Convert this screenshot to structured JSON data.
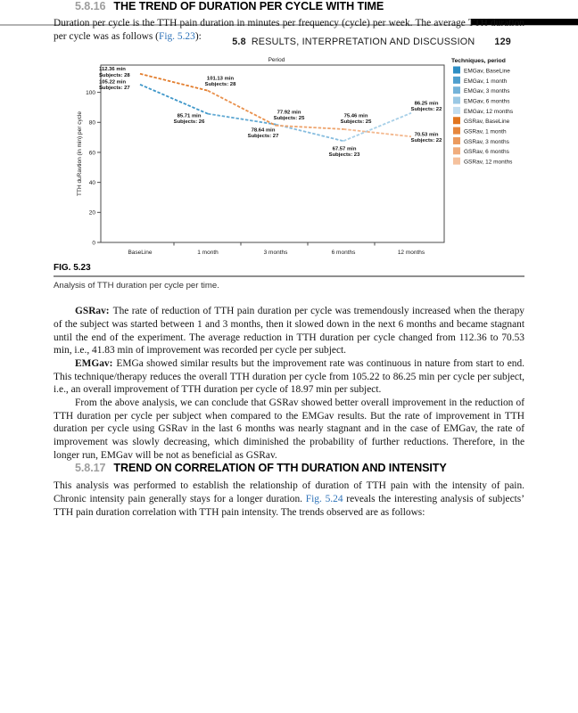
{
  "header": {
    "chapter_section": "5.8",
    "title": "RESULTS, INTERPRETATION AND DISCUSSION",
    "page_number": "129"
  },
  "section_trend_duration": {
    "number": "5.8.16",
    "heading": "THE TREND OF DURATION PER CYCLE WITH TIME",
    "intro_before": "Duration per cycle is the TTH pain duration in minutes per frequency (cycle) per week. The average TTH duration per cycle was as follows (",
    "intro_link": "Fig. 5.23",
    "intro_after": "):",
    "paragraphs": [
      {
        "lead": "GSRav:",
        "text": "The rate of reduction of TTH pain duration per cycle was tremendously increased when the therapy of the subject was started between 1 and 3 months, then it slowed down in the next 6 months and became stagnant until the end of the experiment. The average reduction in TTH duration per cycle changed from 112.36 to 70.53 min, i.e., 41.83 min of improvement was recorded per cycle per subject."
      },
      {
        "lead": "EMGav:",
        "text": "EMGa showed similar results but the improvement rate was continuous in nature from start to end. This technique/therapy reduces the overall TTH duration per cycle from 105.22 to 86.25 min per cycle per subject, i.e., an overall improvement of TTH duration per cycle of 18.97 min per subject."
      },
      {
        "lead": "",
        "text": "From the above analysis, we can conclude that GSRav showed better overall improvement in the reduction of TTH duration per cycle per subject when compared to the EMGav results. But the rate of improvement in TTH duration per cycle using GSRav in the last 6 months was nearly stagnant and in the case of EMGav, the rate of improvement was slowly decreasing, which diminished the probability of further reductions. Therefore, in the longer run, EMGav will be not as beneficial as GSRav."
      }
    ]
  },
  "figure": {
    "label": "FIG. 5.23",
    "caption": "Analysis of TTH duration per cycle per time."
  },
  "chart_data": {
    "type": "line",
    "title": "Period",
    "xlabel": "",
    "ylabel": "TTH duRavtion (in min) per cycle",
    "categories": [
      "BaseLine",
      "1 month",
      "3 months",
      "6 months",
      "12 months"
    ],
    "yticks": [
      0,
      20,
      40,
      60,
      80,
      100
    ],
    "ylim": [
      0,
      117
    ],
    "grid": false,
    "legend_position": "right",
    "legend_title": "Techniques, period",
    "line_style": "dashed",
    "series": [
      {
        "name": "EMGav",
        "values": [
          105.22,
          85.71,
          78.64,
          67.57,
          86.25
        ],
        "subjects": [
          27,
          26,
          27,
          23,
          22
        ],
        "colors": [
          "#2e8ec4",
          "#4f9fce",
          "#74b3d9",
          "#9ac8e4",
          "#c2ddef"
        ],
        "segment_colors": [
          "#3f97c9",
          "#61a9d3",
          "#87bddf",
          "#a8d0e8"
        ]
      },
      {
        "name": "GSRav",
        "values": [
          112.36,
          101.13,
          77.92,
          75.46,
          70.53
        ],
        "subjects": [
          28,
          28,
          25,
          25,
          22
        ],
        "colors": [
          "#e1751f",
          "#e6873d",
          "#eb9a5d",
          "#f0ad7d",
          "#f5c19d"
        ],
        "segment_colors": [
          "#e37e2e",
          "#e9914d",
          "#eea46d",
          "#f3b78d"
        ]
      }
    ],
    "point_label_unit": "min",
    "point_label_prefix": "Subjects: ",
    "legend_entries": [
      "EMGav, BaseLine",
      "EMGav, 1 month",
      "EMGav, 3 months",
      "EMGav, 6 months",
      "EMGav, 12 months",
      "GSRav, BaseLine",
      "GSRav, 1 month",
      "GSRav, 3 months",
      "GSRav, 6 months",
      "GSRav, 12 months"
    ]
  },
  "section_trend_correlation": {
    "number": "5.8.17",
    "heading": "TREND ON CORRELATION OF TTH DURATION AND INTENSITY",
    "body_before": "This analysis was performed to establish the relationship of duration of TTH pain with the intensity of pain. Chronic intensity pain generally stays for a longer duration. ",
    "body_link": "Fig. 5.24",
    "body_after": " reveals the interesting analysis of subjects’ TTH pain duration correlation with TTH pain intensity. The trends observed are as follows:"
  }
}
